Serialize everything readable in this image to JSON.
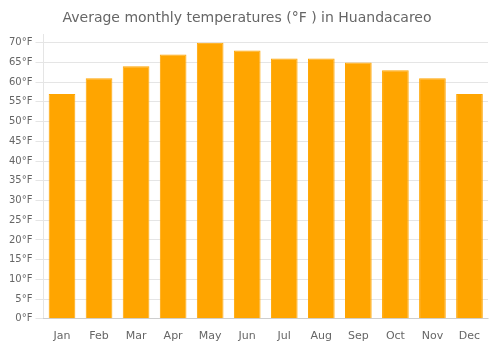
{
  "chart_data": {
    "type": "bar",
    "title": "Average monthly temperatures (°F ) in Huandacareo",
    "categories": [
      "Jan",
      "Feb",
      "Mar",
      "Apr",
      "May",
      "Jun",
      "Jul",
      "Aug",
      "Sep",
      "Oct",
      "Nov",
      "Dec"
    ],
    "values": [
      57,
      61,
      64,
      67,
      70,
      68,
      66,
      66,
      65,
      63,
      61,
      57
    ],
    "color": "#FFA500",
    "ylim": [
      0,
      72
    ],
    "yticks": [
      {
        "value": 0,
        "label": "0°F"
      },
      {
        "value": 5,
        "label": "5°F"
      },
      {
        "value": 10,
        "label": "10°F"
      },
      {
        "value": 15,
        "label": "15°F"
      },
      {
        "value": 20,
        "label": "20°F"
      },
      {
        "value": 25,
        "label": "25°F"
      },
      {
        "value": 30,
        "label": "30°F"
      },
      {
        "value": 35,
        "label": "35°F"
      },
      {
        "value": 40,
        "label": "40°F"
      },
      {
        "value": 45,
        "label": "45°F"
      },
      {
        "value": 50,
        "label": "50°F"
      },
      {
        "value": 55,
        "label": "55°F"
      },
      {
        "value": 60,
        "label": "60°F"
      },
      {
        "value": 65,
        "label": "65°F"
      },
      {
        "value": 70,
        "label": "70°F"
      }
    ],
    "grid": true
  }
}
